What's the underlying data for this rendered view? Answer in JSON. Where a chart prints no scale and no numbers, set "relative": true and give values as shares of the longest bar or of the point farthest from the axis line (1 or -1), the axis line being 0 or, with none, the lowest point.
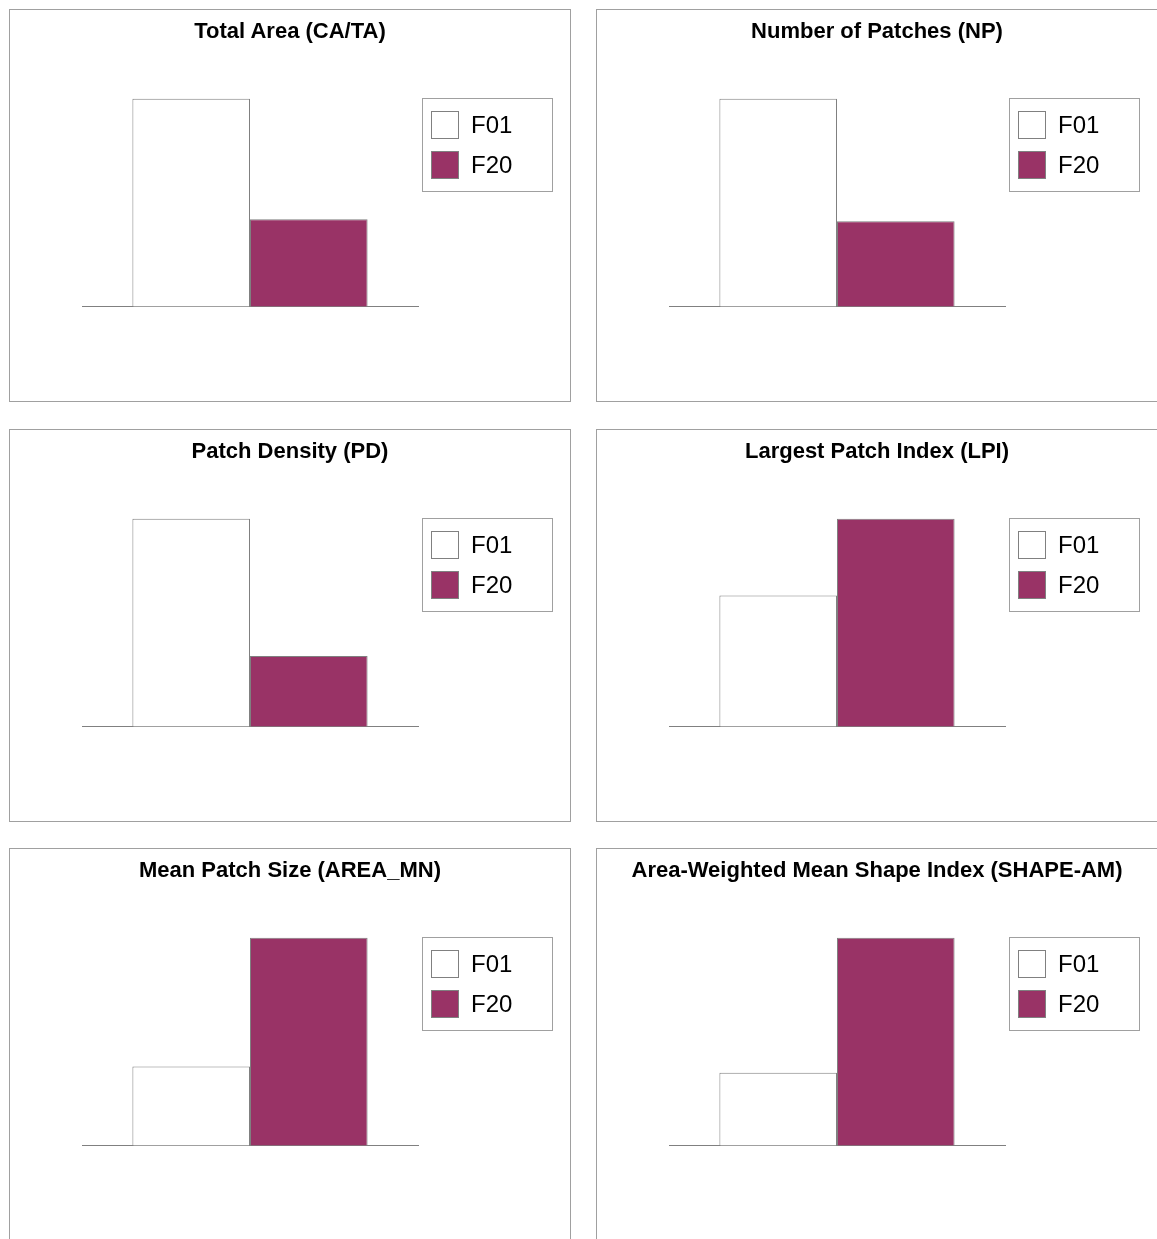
{
  "chart_data": [
    {
      "type": "bar",
      "title": "Total Area (CA/TA)",
      "categories": [
        null
      ],
      "relative": true,
      "legend": "right",
      "grid": false,
      "series": [
        {
          "name": "F01",
          "color": "#ffffff",
          "values": [
            1
          ]
        },
        {
          "name": "F20",
          "color": "#993366",
          "values": [
            0.42
          ]
        }
      ]
    },
    {
      "type": "bar",
      "title": "Number of Patches (NP)",
      "categories": [
        null
      ],
      "relative": true,
      "legend": "right",
      "grid": false,
      "series": [
        {
          "name": "F01",
          "color": "#ffffff",
          "values": [
            1
          ]
        },
        {
          "name": "F20",
          "color": "#993366",
          "values": [
            0.41
          ]
        }
      ]
    },
    {
      "type": "bar",
      "title": "Patch Density (PD)",
      "categories": [
        null
      ],
      "relative": true,
      "legend": "right",
      "grid": false,
      "series": [
        {
          "name": "F01",
          "color": "#ffffff",
          "values": [
            1
          ]
        },
        {
          "name": "F20",
          "color": "#993366",
          "values": [
            0.34
          ]
        }
      ]
    },
    {
      "type": "bar",
      "title": "Largest Patch Index (LPI)",
      "categories": [
        null
      ],
      "relative": true,
      "legend": "right",
      "grid": false,
      "series": [
        {
          "name": "F01",
          "color": "#ffffff",
          "values": [
            0.63
          ]
        },
        {
          "name": "F20",
          "color": "#993366",
          "values": [
            1
          ]
        }
      ]
    },
    {
      "type": "bar",
      "title": "Mean Patch Size (AREA_MN)",
      "categories": [
        null
      ],
      "relative": true,
      "legend": "right",
      "grid": false,
      "series": [
        {
          "name": "F01",
          "color": "#ffffff",
          "values": [
            0.38
          ]
        },
        {
          "name": "F20",
          "color": "#993366",
          "values": [
            1
          ]
        }
      ]
    },
    {
      "type": "bar",
      "title": "Area-Weighted Mean Shape Index (SHAPE-AM)",
      "categories": [
        null
      ],
      "relative": true,
      "legend": "right",
      "grid": false,
      "series": [
        {
          "name": "F01",
          "color": "#ffffff",
          "values": [
            0.35
          ]
        },
        {
          "name": "F20",
          "color": "#993366",
          "values": [
            1
          ]
        }
      ]
    }
  ]
}
